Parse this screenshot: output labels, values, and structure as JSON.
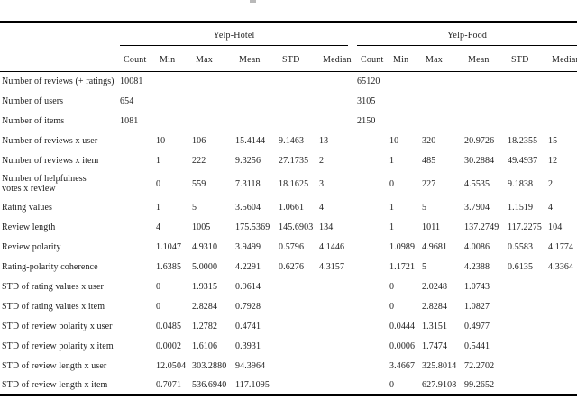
{
  "table": {
    "groups": [
      {
        "label": "Yelp-Hotel"
      },
      {
        "label": "Yelp-Food"
      }
    ],
    "columns": [
      "Count",
      "Min",
      "Max",
      "Mean",
      "STD",
      "Median"
    ],
    "rows": [
      {
        "label": "Number of reviews (+ ratings)",
        "twoline": false,
        "hotel": [
          "10081",
          "",
          "",
          "",
          "",
          ""
        ],
        "food": [
          "65120",
          "",
          "",
          "",
          "",
          ""
        ]
      },
      {
        "label": "Number of users",
        "twoline": false,
        "hotel": [
          "654",
          "",
          "",
          "",
          "",
          ""
        ],
        "food": [
          "3105",
          "",
          "",
          "",
          "",
          ""
        ]
      },
      {
        "label": "Number of items",
        "twoline": false,
        "hotel": [
          "1081",
          "",
          "",
          "",
          "",
          ""
        ],
        "food": [
          "2150",
          "",
          "",
          "",
          "",
          ""
        ]
      },
      {
        "label": "Number of reviews x user",
        "twoline": false,
        "hotel": [
          "",
          "10",
          "106",
          "15.4144",
          "9.1463",
          "13"
        ],
        "food": [
          "",
          "10",
          "320",
          "20.9726",
          "18.2355",
          "15"
        ]
      },
      {
        "label": "Number of reviews x item",
        "twoline": false,
        "hotel": [
          "",
          "1",
          "222",
          "9.3256",
          "27.1735",
          "2"
        ],
        "food": [
          "",
          "1",
          "485",
          "30.2884",
          "49.4937",
          "12"
        ]
      },
      {
        "label": "Number of helpfulness votes x review",
        "twoline": true,
        "hotel": [
          "",
          "0",
          "559",
          "7.3118",
          "18.1625",
          "3"
        ],
        "food": [
          "",
          "0",
          "227",
          "4.5535",
          "9.1838",
          "2"
        ]
      },
      {
        "label": "Rating values",
        "twoline": false,
        "hotel": [
          "",
          "1",
          "5",
          "3.5604",
          "1.0661",
          "4"
        ],
        "food": [
          "",
          "1",
          "5",
          "3.7904",
          "1.1519",
          "4"
        ]
      },
      {
        "label": "Review length",
        "twoline": false,
        "hotel": [
          "",
          "4",
          "1005",
          "175.5369",
          "145.6903",
          "134"
        ],
        "food": [
          "",
          "1",
          "1011",
          "137.2749",
          "117.2275",
          "104"
        ]
      },
      {
        "label": "Review polarity",
        "twoline": false,
        "hotel": [
          "",
          "1.1047",
          "4.9310",
          "3.9499",
          "0.5796",
          "4.1446"
        ],
        "food": [
          "",
          "1.0989",
          "4.9681",
          "4.0086",
          "0.5583",
          "4.1774"
        ]
      },
      {
        "label": "Rating-polarity coherence",
        "twoline": false,
        "hotel": [
          "",
          "1.6385",
          "5.0000",
          "4.2291",
          "0.6276",
          "4.3157"
        ],
        "food": [
          "",
          "1.1721",
          "5",
          "4.2388",
          "0.6135",
          "4.3364"
        ]
      },
      {
        "label": "STD of rating values x user",
        "twoline": false,
        "hotel": [
          "",
          "0",
          "1.9315",
          "0.9614",
          "",
          ""
        ],
        "food": [
          "",
          "0",
          "2.0248",
          "1.0743",
          "",
          ""
        ]
      },
      {
        "label": "STD of rating values x item",
        "twoline": false,
        "hotel": [
          "",
          "0",
          "2.8284",
          "0.7928",
          "",
          ""
        ],
        "food": [
          "",
          "0",
          "2.8284",
          "1.0827",
          "",
          ""
        ]
      },
      {
        "label": "STD of review polarity x user",
        "twoline": false,
        "hotel": [
          "",
          "0.0485",
          "1.2782",
          "0.4741",
          "",
          ""
        ],
        "food": [
          "",
          "0.0444",
          "1.3151",
          "0.4977",
          "",
          ""
        ]
      },
      {
        "label": "STD of review polarity x item",
        "twoline": false,
        "hotel": [
          "",
          "0.0002",
          "1.6106",
          "0.3931",
          "",
          ""
        ],
        "food": [
          "",
          "0.0006",
          "1.7474",
          "0.5441",
          "",
          ""
        ]
      },
      {
        "label": "STD of review length x user",
        "twoline": false,
        "hotel": [
          "",
          "12.0504",
          "303.2880",
          "94.3964",
          "",
          ""
        ],
        "food": [
          "",
          "3.4667",
          "325.8014",
          "72.2702",
          "",
          ""
        ]
      },
      {
        "label": "STD of review length x item",
        "twoline": false,
        "hotel": [
          "",
          "0.7071",
          "536.6940",
          "117.1095",
          "",
          ""
        ],
        "food": [
          "",
          "0",
          "627.9108",
          "99.2652",
          "",
          ""
        ]
      }
    ]
  }
}
